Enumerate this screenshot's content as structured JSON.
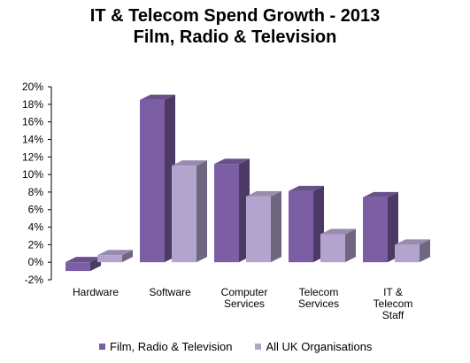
{
  "title": "IT & Telecom Spend Growth - 2013",
  "subtitle": "Film, Radio & Television",
  "chart_data": {
    "type": "bar",
    "categories": [
      [
        "Hardware"
      ],
      [
        "Software"
      ],
      [
        "Computer",
        "Services"
      ],
      [
        "Telecom",
        "Services"
      ],
      [
        "IT &",
        "Telecom",
        "Staff"
      ]
    ],
    "series": [
      {
        "name": "Film, Radio & Television",
        "color": "#7B5EA3",
        "values": [
          -1.0,
          18.5,
          11.2,
          8.1,
          7.4
        ]
      },
      {
        "name": "All UK Organisations",
        "color": "#B3A4CD",
        "values": [
          0.8,
          11.0,
          7.5,
          3.2,
          2.0
        ]
      }
    ],
    "ylim": [
      -2,
      20
    ],
    "yticks": [
      "-2%",
      "0%",
      "2%",
      "4%",
      "6%",
      "8%",
      "10%",
      "12%",
      "14%",
      "16%",
      "18%",
      "20%"
    ],
    "grid": false,
    "legend": "bottom"
  }
}
